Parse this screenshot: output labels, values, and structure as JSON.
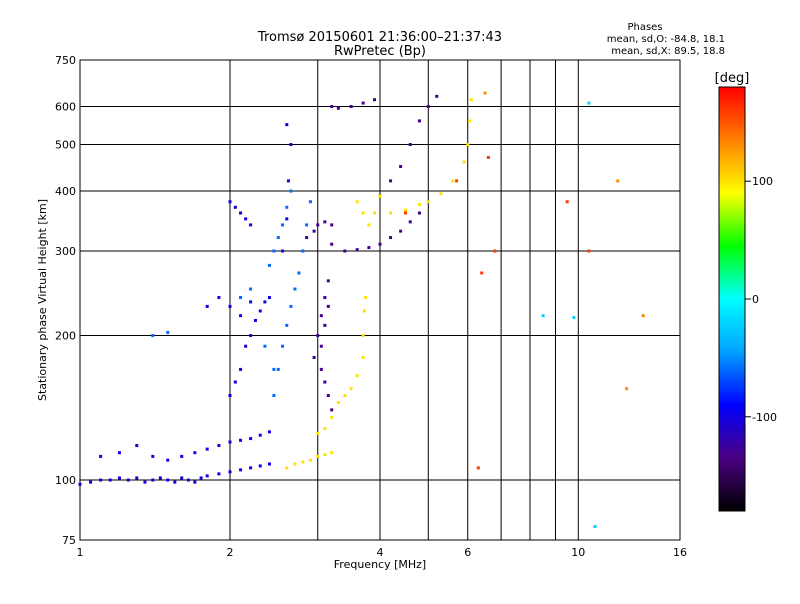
{
  "chart_data": {
    "type": "scatter",
    "title": "Tromsø 20150601 21:36:00–21:37:43",
    "subtitle": "RwPretec (Bp)",
    "xlabel": "Frequency [MHz]",
    "ylabel": "Stationary phase Virtual Height [km]",
    "xscale": "log",
    "yscale": "log",
    "xlim": [
      1,
      16
    ],
    "ylim": [
      75,
      750
    ],
    "x_ticks": [
      1,
      2,
      4,
      6,
      10,
      16
    ],
    "x_tick_labels": [
      "1",
      "2",
      "4",
      "6",
      "10",
      "16"
    ],
    "x_minor_ticks": [
      3,
      5,
      7,
      8,
      9
    ],
    "y_ticks": [
      75,
      100,
      200,
      300,
      400,
      500,
      600,
      750
    ],
    "y_tick_labels": [
      "75",
      "100",
      "200",
      "300",
      "400",
      "500",
      "600",
      "750"
    ],
    "grid": true,
    "stats": {
      "heading": "Phases",
      "line1": "mean, sd,O: -84.8, 18.1",
      "line2": "mean, sd,X:  89.5, 18.8"
    },
    "colorbar": {
      "label": "[deg]",
      "range": [
        -180,
        180
      ],
      "ticks": [
        100,
        0,
        -100
      ],
      "tick_labels": [
        "100",
        "0",
        "-100"
      ],
      "colors": [
        "#000000",
        "#4b0082",
        "#0000ff",
        "#00a0ff",
        "#00ffff",
        "#00ff00",
        "#ffff00",
        "#ff8000",
        "#ff0000"
      ]
    },
    "series": [
      {
        "phase": -100,
        "points": [
          [
            1.0,
            98
          ],
          [
            1.05,
            99
          ],
          [
            1.1,
            100
          ],
          [
            1.15,
            100
          ],
          [
            1.2,
            101
          ],
          [
            1.25,
            100
          ],
          [
            1.3,
            101
          ],
          [
            1.35,
            99
          ],
          [
            1.4,
            100
          ],
          [
            1.45,
            101
          ],
          [
            1.5,
            100
          ],
          [
            1.55,
            99
          ],
          [
            1.6,
            101
          ],
          [
            1.65,
            100
          ],
          [
            1.7,
            99
          ],
          [
            1.75,
            101
          ],
          [
            1.8,
            102
          ],
          [
            1.9,
            103
          ],
          [
            2.0,
            104
          ],
          [
            2.1,
            105
          ],
          [
            2.2,
            106
          ],
          [
            2.3,
            107
          ],
          [
            2.4,
            108
          ],
          [
            1.1,
            112
          ],
          [
            1.2,
            114
          ],
          [
            1.3,
            118
          ],
          [
            1.4,
            112
          ],
          [
            1.5,
            110
          ],
          [
            1.6,
            112
          ],
          [
            1.7,
            114
          ],
          [
            1.8,
            116
          ],
          [
            1.9,
            118
          ],
          [
            2.0,
            120
          ],
          [
            2.1,
            121
          ],
          [
            2.2,
            122
          ],
          [
            2.3,
            124
          ],
          [
            2.4,
            126
          ],
          [
            2.0,
            150
          ],
          [
            2.05,
            160
          ],
          [
            2.1,
            170
          ],
          [
            2.15,
            190
          ],
          [
            2.2,
            200
          ],
          [
            2.25,
            215
          ],
          [
            2.3,
            225
          ],
          [
            2.35,
            235
          ],
          [
            2.4,
            240
          ],
          [
            1.8,
            230
          ],
          [
            1.9,
            240
          ],
          [
            2.0,
            230
          ],
          [
            2.1,
            220
          ],
          [
            2.2,
            235
          ],
          [
            2.0,
            380
          ],
          [
            2.05,
            370
          ],
          [
            2.1,
            360
          ],
          [
            2.15,
            350
          ],
          [
            2.2,
            340
          ],
          [
            2.55,
            300
          ],
          [
            2.6,
            350
          ],
          [
            2.62,
            420
          ],
          [
            2.65,
            500
          ],
          [
            2.6,
            550
          ]
        ]
      },
      {
        "phase": -130,
        "points": [
          [
            2.95,
            180
          ],
          [
            3.0,
            200
          ],
          [
            3.05,
            220
          ],
          [
            3.1,
            240
          ],
          [
            3.15,
            260
          ],
          [
            3.05,
            170
          ],
          [
            3.1,
            160
          ],
          [
            3.15,
            150
          ],
          [
            3.2,
            140
          ],
          [
            3.05,
            190
          ],
          [
            3.1,
            210
          ],
          [
            3.15,
            230
          ],
          [
            3.2,
            310
          ],
          [
            3.4,
            300
          ],
          [
            3.6,
            302
          ],
          [
            3.8,
            305
          ],
          [
            4.0,
            310
          ],
          [
            4.2,
            320
          ],
          [
            4.4,
            330
          ],
          [
            4.6,
            345
          ],
          [
            4.8,
            360
          ],
          [
            2.85,
            320
          ],
          [
            2.95,
            330
          ],
          [
            3.0,
            340
          ],
          [
            3.1,
            345
          ],
          [
            3.2,
            340
          ],
          [
            4.0,
            390
          ],
          [
            4.2,
            420
          ],
          [
            4.4,
            450
          ],
          [
            4.6,
            500
          ],
          [
            4.8,
            560
          ],
          [
            5.0,
            600
          ],
          [
            5.2,
            630
          ],
          [
            3.2,
            600
          ],
          [
            3.3,
            595
          ],
          [
            3.5,
            600
          ],
          [
            3.7,
            610
          ],
          [
            3.9,
            620
          ]
        ]
      },
      {
        "phase": -60,
        "points": [
          [
            2.45,
            150
          ],
          [
            2.5,
            170
          ],
          [
            2.55,
            190
          ],
          [
            2.6,
            210
          ],
          [
            2.65,
            230
          ],
          [
            2.7,
            250
          ],
          [
            2.75,
            270
          ],
          [
            2.8,
            300
          ],
          [
            2.85,
            340
          ],
          [
            2.9,
            380
          ],
          [
            2.4,
            280
          ],
          [
            2.45,
            300
          ],
          [
            2.5,
            320
          ],
          [
            2.55,
            340
          ],
          [
            2.6,
            370
          ],
          [
            2.65,
            400
          ],
          [
            1.5,
            203
          ],
          [
            1.4,
            200
          ],
          [
            2.35,
            190
          ],
          [
            2.45,
            170
          ],
          [
            2.1,
            240
          ],
          [
            2.2,
            250
          ]
        ]
      },
      {
        "phase": 100,
        "points": [
          [
            3.7,
            180
          ],
          [
            3.6,
            165
          ],
          [
            3.5,
            155
          ],
          [
            3.4,
            150
          ],
          [
            3.3,
            145
          ],
          [
            3.2,
            135
          ],
          [
            3.1,
            128
          ],
          [
            3.0,
            125
          ],
          [
            3.7,
            200
          ],
          [
            3.72,
            225
          ],
          [
            3.74,
            240
          ],
          [
            2.6,
            106
          ],
          [
            2.7,
            108
          ],
          [
            2.8,
            109
          ],
          [
            2.9,
            110
          ],
          [
            3.0,
            112
          ],
          [
            3.1,
            113
          ],
          [
            3.2,
            114
          ],
          [
            3.9,
            360
          ],
          [
            4.2,
            360
          ],
          [
            4.5,
            365
          ],
          [
            4.8,
            375
          ],
          [
            5.0,
            380
          ],
          [
            5.3,
            395
          ],
          [
            5.6,
            420
          ],
          [
            5.9,
            460
          ],
          [
            6.0,
            500
          ],
          [
            6.05,
            560
          ],
          [
            6.1,
            620
          ],
          [
            3.8,
            340
          ],
          [
            3.7,
            360
          ],
          [
            3.6,
            380
          ],
          [
            4.0,
            390
          ]
        ]
      },
      {
        "phase": 160,
        "points": [
          [
            4.5,
            360
          ],
          [
            5.7,
            420
          ],
          [
            6.6,
            470
          ],
          [
            6.8,
            300
          ],
          [
            6.3,
            106
          ],
          [
            6.4,
            270
          ],
          [
            9.5,
            380
          ],
          [
            10.5,
            300
          ]
        ]
      },
      {
        "phase": -20,
        "points": [
          [
            8.5,
            220
          ],
          [
            9.8,
            218
          ],
          [
            10.8,
            80
          ],
          [
            10.5,
            610
          ]
        ]
      },
      {
        "phase": 130,
        "points": [
          [
            12.0,
            420
          ],
          [
            13.5,
            220
          ],
          [
            12.5,
            155
          ],
          [
            6.5,
            640
          ]
        ]
      }
    ]
  }
}
